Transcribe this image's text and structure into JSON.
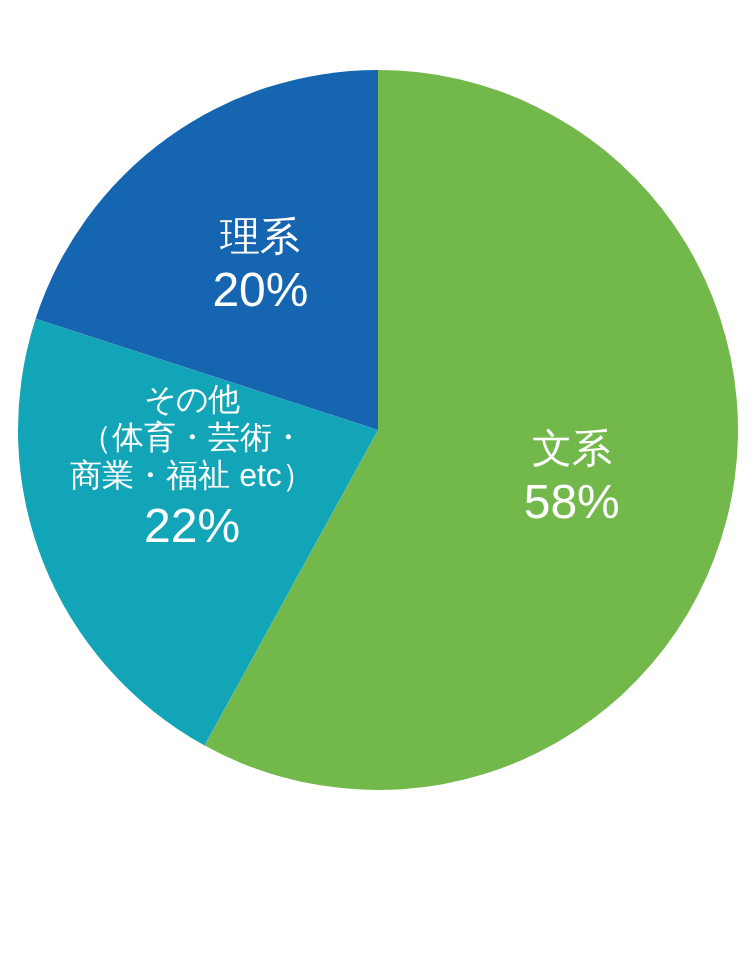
{
  "chart_data": {
    "type": "pie",
    "categories": [
      "文系",
      "その他（体育・芸術・商業・福祉 etc）",
      "理系"
    ],
    "values": [
      58,
      22,
      20
    ],
    "colors": [
      "#72b84b",
      "#12a5b8",
      "#1565b0"
    ],
    "value_labels": [
      "58%",
      "22%",
      "20%"
    ]
  }
}
